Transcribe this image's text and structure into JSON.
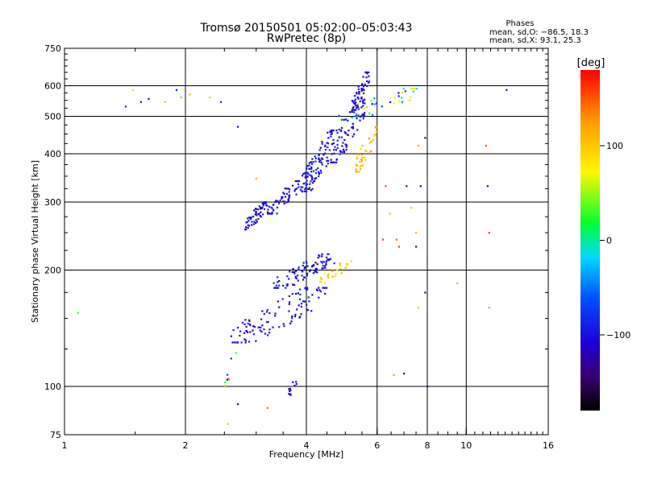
{
  "chart_data": {
    "type": "scatter",
    "title": "Tromsø 20150501 05:02:00–05:03:43",
    "subtitle": "RwPretec (8p)",
    "xlabel": "Frequency [MHz]",
    "ylabel": "Stationary phase Virtual Height [km]",
    "x_scale": "log",
    "y_scale": "log",
    "xlim": [
      1,
      16
    ],
    "ylim": [
      75,
      750
    ],
    "x_ticks": [
      1,
      2,
      4,
      6,
      8,
      10,
      16
    ],
    "x_tick_labels": [
      "1",
      "2",
      "4",
      "6",
      "8",
      "10",
      "16"
    ],
    "y_ticks": [
      75,
      100,
      200,
      300,
      400,
      500,
      600,
      750
    ],
    "y_tick_labels": [
      "75",
      "100",
      "200",
      "300",
      "400",
      "500",
      "600",
      "750"
    ],
    "x_gridlines": [
      2,
      4,
      6,
      8,
      10
    ],
    "y_gridlines": [
      100,
      200,
      300,
      400,
      500,
      600
    ],
    "grid": true,
    "phase_legend": {
      "title": "Phases",
      "line_o": "mean, sd,O: −86.5, 18.3",
      "line_x": "mean, sd,X:  93.1, 25.3"
    },
    "colorbar": {
      "label": "[deg]",
      "range": [
        -180,
        180
      ],
      "ticks": [
        100,
        0,
        -100
      ],
      "tick_labels": [
        "100",
        "0",
        "−100"
      ]
    },
    "clusters": [
      {
        "name": "",
        "x_range": [
          2.8,
          3.2
        ],
        "y_range": [
          255,
          300
        ],
        "phase": [
          -120,
          -85
        ],
        "count": 55
      },
      {
        "name": "",
        "x_range": [
          3.2,
          3.9
        ],
        "y_range": [
          280,
          340
        ],
        "phase": [
          -120,
          -85
        ],
        "count": 60
      },
      {
        "name": "",
        "x_range": [
          3.9,
          4.8
        ],
        "y_range": [
          320,
          460
        ],
        "phase": [
          -125,
          -80
        ],
        "count": 120
      },
      {
        "name": "",
        "x_range": [
          4.6,
          5.6
        ],
        "y_range": [
          380,
          560
        ],
        "phase": [
          -125,
          -80
        ],
        "count": 90
      },
      {
        "name": "",
        "x_range": [
          5.2,
          5.75
        ],
        "y_range": [
          520,
          650
        ],
        "phase": [
          -120,
          -90
        ],
        "count": 50
      },
      {
        "name": "",
        "x_range": [
          5.3,
          6.0
        ],
        "y_range": [
          360,
          470
        ],
        "phase": [
          85,
          130
        ],
        "count": 45
      },
      {
        "name": "",
        "x_range": [
          4.8,
          7.6
        ],
        "y_range": [
          490,
          590
        ],
        "phase": [
          -130,
          130
        ],
        "count": 40
      },
      {
        "name": "",
        "x_range": [
          3.3,
          4.7
        ],
        "y_range": [
          180,
          220
        ],
        "phase": [
          -125,
          -75
        ],
        "count": 90
      },
      {
        "name": "",
        "x_range": [
          4.3,
          5.2
        ],
        "y_range": [
          185,
          212
        ],
        "phase": [
          60,
          120
        ],
        "count": 30
      },
      {
        "name": "",
        "x_range": [
          2.6,
          4.5
        ],
        "y_range": [
          130,
          180
        ],
        "phase": [
          -130,
          -80
        ],
        "count": 110
      },
      {
        "name": "",
        "x_range": [
          3.6,
          3.8
        ],
        "y_range": [
          95,
          105
        ],
        "phase": [
          -120,
          -90
        ],
        "count": 12
      },
      {
        "name": "",
        "x_range": [
          2.5,
          2.7
        ],
        "y_range": [
          100,
          125
        ],
        "phase": [
          -150,
          130
        ],
        "count": 10
      }
    ],
    "isolated_points": [
      {
        "x": 1.08,
        "y": 155,
        "phase": 30
      },
      {
        "x": 1.42,
        "y": 530,
        "phase": -90
      },
      {
        "x": 1.48,
        "y": 585,
        "phase": 90
      },
      {
        "x": 1.55,
        "y": 545,
        "phase": -110
      },
      {
        "x": 1.62,
        "y": 555,
        "phase": -95
      },
      {
        "x": 1.78,
        "y": 545,
        "phase": 100
      },
      {
        "x": 1.9,
        "y": 585,
        "phase": -90
      },
      {
        "x": 1.95,
        "y": 560,
        "phase": 120
      },
      {
        "x": 2.05,
        "y": 570,
        "phase": 110
      },
      {
        "x": 2.3,
        "y": 560,
        "phase": 100
      },
      {
        "x": 2.45,
        "y": 545,
        "phase": -90
      },
      {
        "x": 2.7,
        "y": 470,
        "phase": -110
      },
      {
        "x": 3.0,
        "y": 345,
        "phase": 110
      },
      {
        "x": 2.55,
        "y": 80,
        "phase": 100
      },
      {
        "x": 2.7,
        "y": 90,
        "phase": -140
      },
      {
        "x": 3.2,
        "y": 88,
        "phase": 140
      },
      {
        "x": 6.3,
        "y": 330,
        "phase": 150
      },
      {
        "x": 6.45,
        "y": 280,
        "phase": 110
      },
      {
        "x": 6.2,
        "y": 240,
        "phase": 160
      },
      {
        "x": 7.1,
        "y": 330,
        "phase": -110
      },
      {
        "x": 7.3,
        "y": 290,
        "phase": 100
      },
      {
        "x": 7.5,
        "y": 250,
        "phase": 110
      },
      {
        "x": 7.7,
        "y": 330,
        "phase": -120
      },
      {
        "x": 7.9,
        "y": 440,
        "phase": -110
      },
      {
        "x": 7.6,
        "y": 420,
        "phase": 120
      },
      {
        "x": 6.7,
        "y": 240,
        "phase": 150
      },
      {
        "x": 6.8,
        "y": 230,
        "phase": 160
      },
      {
        "x": 7.5,
        "y": 230,
        "phase": -100
      },
      {
        "x": 7.9,
        "y": 175,
        "phase": -110
      },
      {
        "x": 7.6,
        "y": 160,
        "phase": 100
      },
      {
        "x": 9.5,
        "y": 185,
        "phase": 120
      },
      {
        "x": 11.2,
        "y": 420,
        "phase": 150
      },
      {
        "x": 11.3,
        "y": 330,
        "phase": -110
      },
      {
        "x": 11.4,
        "y": 250,
        "phase": 160
      },
      {
        "x": 11.4,
        "y": 160,
        "phase": 30
      },
      {
        "x": 12.6,
        "y": 585,
        "phase": -100
      },
      {
        "x": 6.6,
        "y": 107,
        "phase": 120
      },
      {
        "x": 7.0,
        "y": 108,
        "phase": -100
      },
      {
        "x": 8.0,
        "y": 100,
        "phase": -130
      }
    ]
  }
}
